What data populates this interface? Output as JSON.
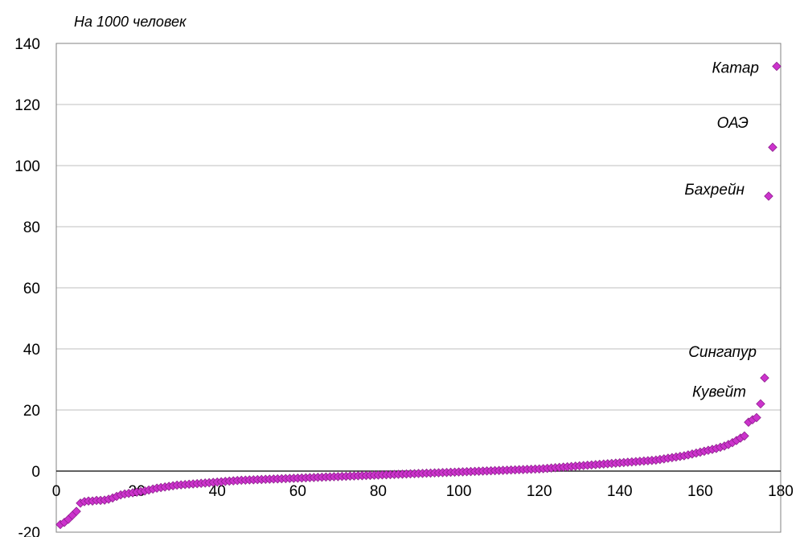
{
  "chart_data": {
    "type": "scatter",
    "title": "",
    "ylabel": "На 1000 человек",
    "xlabel": "",
    "xlim": [
      0,
      180
    ],
    "ylim": [
      -20,
      140
    ],
    "x_ticks": [
      "0",
      "20",
      "40",
      "60",
      "80",
      "100",
      "120",
      "140",
      "160",
      "180"
    ],
    "y_ticks": [
      "-20",
      "0",
      "20",
      "40",
      "60",
      "80",
      "100",
      "120",
      "140"
    ],
    "grid": "horizontal",
    "legend": "none",
    "marker": "diamond",
    "colors": {
      "marker_fill": "#cc33cc",
      "marker_stroke": "#8e1f8e",
      "grid": "#bfbfbf",
      "axis": "#808080",
      "zero_line": "#000000"
    },
    "annotations": [
      {
        "label": "Катар",
        "x": 179,
        "y": 132.5
      },
      {
        "label": "ОАЭ",
        "x": 178,
        "y": 106
      },
      {
        "label": "Бахрейн",
        "x": 177,
        "y": 90
      },
      {
        "label": "Сингапур",
        "x": 176,
        "y": 30.5
      },
      {
        "label": "Кувейт",
        "x": 175,
        "y": 22
      }
    ],
    "points": [
      [
        1,
        -17.5
      ],
      [
        2,
        -16.8
      ],
      [
        3,
        -15.8
      ],
      [
        4,
        -14.5
      ],
      [
        5,
        -13.2
      ],
      [
        6,
        -10.5
      ],
      [
        7,
        -10
      ],
      [
        8,
        -9.8
      ],
      [
        9,
        -9.8
      ],
      [
        10,
        -9.6
      ],
      [
        11,
        -9.6
      ],
      [
        12,
        -9.5
      ],
      [
        13,
        -9.2
      ],
      [
        14,
        -8.8
      ],
      [
        15,
        -8.3
      ],
      [
        16,
        -7.8
      ],
      [
        17,
        -7.5
      ],
      [
        18,
        -7.3
      ],
      [
        19,
        -7.1
      ],
      [
        20,
        -6.9
      ],
      [
        21,
        -6.7
      ],
      [
        22,
        -6.5
      ],
      [
        23,
        -6.2
      ],
      [
        24,
        -5.9
      ],
      [
        25,
        -5.6
      ],
      [
        26,
        -5.4
      ],
      [
        27,
        -5.2
      ],
      [
        28,
        -5.0
      ],
      [
        29,
        -4.8
      ],
      [
        30,
        -4.6
      ],
      [
        31,
        -4.5
      ],
      [
        32,
        -4.4
      ],
      [
        33,
        -4.3
      ],
      [
        34,
        -4.2
      ],
      [
        35,
        -4.1
      ],
      [
        36,
        -4.0
      ],
      [
        37,
        -3.9
      ],
      [
        38,
        -3.8
      ],
      [
        39,
        -3.7
      ],
      [
        40,
        -3.6
      ],
      [
        41,
        -3.5
      ],
      [
        42,
        -3.4
      ],
      [
        43,
        -3.3
      ],
      [
        44,
        -3.2
      ],
      [
        45,
        -3.1
      ],
      [
        46,
        -3.0
      ],
      [
        47,
        -2.95
      ],
      [
        48,
        -2.9
      ],
      [
        49,
        -2.85
      ],
      [
        50,
        -2.8
      ],
      [
        51,
        -2.75
      ],
      [
        52,
        -2.7
      ],
      [
        53,
        -2.65
      ],
      [
        54,
        -2.6
      ],
      [
        55,
        -2.55
      ],
      [
        56,
        -2.5
      ],
      [
        57,
        -2.45
      ],
      [
        58,
        -2.4
      ],
      [
        59,
        -2.35
      ],
      [
        60,
        -2.3
      ],
      [
        61,
        -2.25
      ],
      [
        62,
        -2.2
      ],
      [
        63,
        -2.15
      ],
      [
        64,
        -2.1
      ],
      [
        65,
        -2.05
      ],
      [
        66,
        -2.0
      ],
      [
        67,
        -1.95
      ],
      [
        68,
        -1.9
      ],
      [
        69,
        -1.85
      ],
      [
        70,
        -1.8
      ],
      [
        71,
        -1.75
      ],
      [
        72,
        -1.7
      ],
      [
        73,
        -1.65
      ],
      [
        74,
        -1.6
      ],
      [
        75,
        -1.55
      ],
      [
        76,
        -1.5
      ],
      [
        77,
        -1.45
      ],
      [
        78,
        -1.4
      ],
      [
        79,
        -1.35
      ],
      [
        80,
        -1.3
      ],
      [
        81,
        -1.25
      ],
      [
        82,
        -1.2
      ],
      [
        83,
        -1.15
      ],
      [
        84,
        -1.1
      ],
      [
        85,
        -1.05
      ],
      [
        86,
        -1.0
      ],
      [
        87,
        -0.95
      ],
      [
        88,
        -0.9
      ],
      [
        89,
        -0.85
      ],
      [
        90,
        -0.8
      ],
      [
        91,
        -0.75
      ],
      [
        92,
        -0.7
      ],
      [
        93,
        -0.65
      ],
      [
        94,
        -0.6
      ],
      [
        95,
        -0.55
      ],
      [
        96,
        -0.5
      ],
      [
        97,
        -0.45
      ],
      [
        98,
        -0.4
      ],
      [
        99,
        -0.35
      ],
      [
        100,
        -0.3
      ],
      [
        101,
        -0.25
      ],
      [
        102,
        -0.2
      ],
      [
        103,
        -0.15
      ],
      [
        104,
        -0.1
      ],
      [
        105,
        -0.05
      ],
      [
        106,
        0.0
      ],
      [
        107,
        0.05
      ],
      [
        108,
        0.1
      ],
      [
        109,
        0.15
      ],
      [
        110,
        0.2
      ],
      [
        111,
        0.25
      ],
      [
        112,
        0.3
      ],
      [
        113,
        0.35
      ],
      [
        114,
        0.4
      ],
      [
        115,
        0.45
      ],
      [
        116,
        0.5
      ],
      [
        117,
        0.55
      ],
      [
        118,
        0.6
      ],
      [
        119,
        0.65
      ],
      [
        120,
        0.7
      ],
      [
        121,
        0.8
      ],
      [
        122,
        0.9
      ],
      [
        123,
        1.0
      ],
      [
        124,
        1.1
      ],
      [
        125,
        1.2
      ],
      [
        126,
        1.3
      ],
      [
        127,
        1.4
      ],
      [
        128,
        1.5
      ],
      [
        129,
        1.6
      ],
      [
        130,
        1.7
      ],
      [
        131,
        1.8
      ],
      [
        132,
        1.9
      ],
      [
        133,
        2.0
      ],
      [
        134,
        2.1
      ],
      [
        135,
        2.2
      ],
      [
        136,
        2.3
      ],
      [
        137,
        2.4
      ],
      [
        138,
        2.5
      ],
      [
        139,
        2.6
      ],
      [
        140,
        2.7
      ],
      [
        141,
        2.8
      ],
      [
        142,
        2.9
      ],
      [
        143,
        3.0
      ],
      [
        144,
        3.1
      ],
      [
        145,
        3.2
      ],
      [
        146,
        3.3
      ],
      [
        147,
        3.4
      ],
      [
        148,
        3.5
      ],
      [
        149,
        3.6
      ],
      [
        150,
        3.8
      ],
      [
        151,
        4.0
      ],
      [
        152,
        4.2
      ],
      [
        153,
        4.4
      ],
      [
        154,
        4.6
      ],
      [
        155,
        4.8
      ],
      [
        156,
        5.0
      ],
      [
        157,
        5.3
      ],
      [
        158,
        5.6
      ],
      [
        159,
        5.9
      ],
      [
        160,
        6.2
      ],
      [
        161,
        6.5
      ],
      [
        162,
        6.8
      ],
      [
        163,
        7.1
      ],
      [
        164,
        7.4
      ],
      [
        165,
        7.8
      ],
      [
        166,
        8.2
      ],
      [
        167,
        8.7
      ],
      [
        168,
        9.3
      ],
      [
        169,
        10.0
      ],
      [
        170,
        10.8
      ],
      [
        171,
        11.5
      ],
      [
        172,
        16.0
      ],
      [
        173,
        16.8
      ],
      [
        174,
        17.5
      ],
      [
        175,
        22.0
      ],
      [
        176,
        30.5
      ],
      [
        177,
        90.0
      ],
      [
        178,
        106.0
      ],
      [
        179,
        132.5
      ]
    ]
  }
}
